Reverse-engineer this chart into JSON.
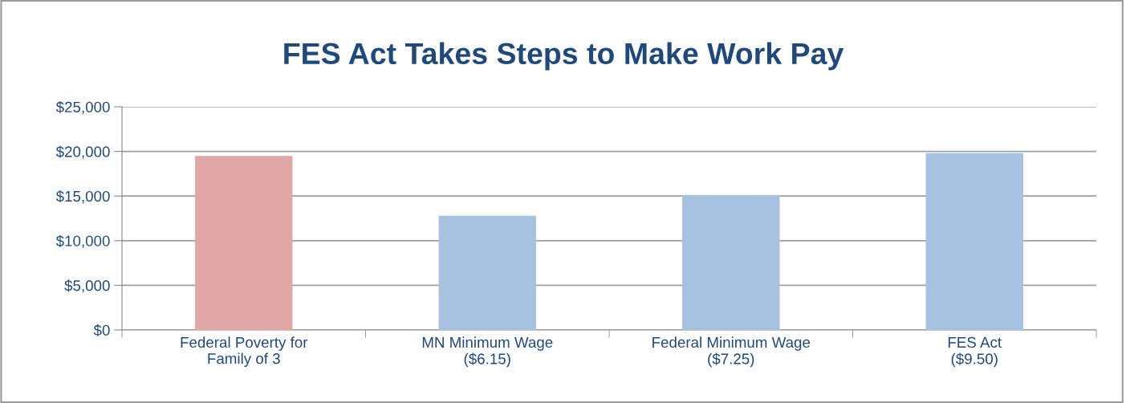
{
  "chart_data": {
    "type": "bar",
    "title": "FES Act Takes Steps to Make Work Pay",
    "categories": [
      "Federal Poverty for\nFamily of 3",
      "MN Minimum Wage\n($6.15)",
      "Federal Minimum Wage\n($7.25)",
      "FES Act\n($9.50)"
    ],
    "values": [
      19500,
      12800,
      15100,
      19800
    ],
    "colors": [
      "#e0a7a6",
      "#a7c1e0",
      "#a7c1e0",
      "#a7c1e0"
    ],
    "ylim": [
      0,
      25000
    ],
    "yticks": [
      {
        "value": 0,
        "label": "$0"
      },
      {
        "value": 5000,
        "label": "$5,000"
      },
      {
        "value": 10000,
        "label": "$10,000"
      },
      {
        "value": 15000,
        "label": "$15,000"
      },
      {
        "value": 20000,
        "label": "$20,000"
      },
      {
        "value": 25000,
        "label": "$25,000"
      }
    ],
    "grid": "y"
  }
}
